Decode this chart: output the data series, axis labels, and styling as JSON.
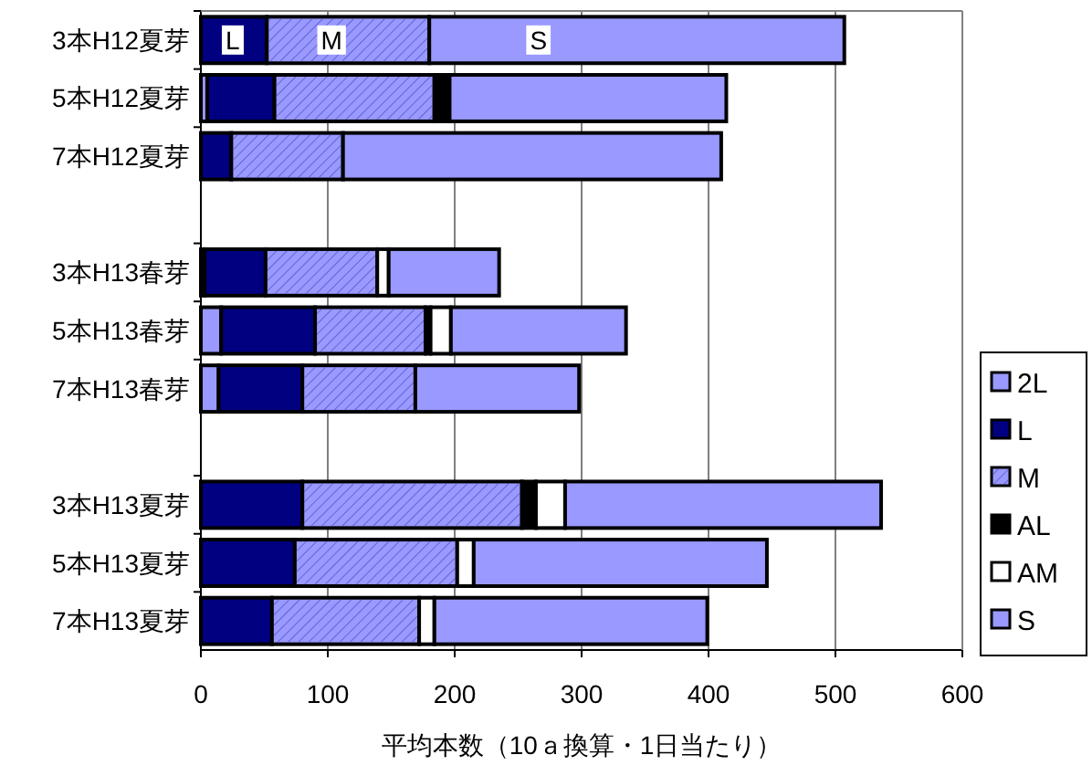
{
  "chart_data": {
    "type": "bar",
    "orientation": "horizontal",
    "stacked": true,
    "categories": [
      "3本H12夏芽",
      "5本H12夏芽",
      "7本H12夏芽",
      null,
      "3本H13春芽",
      "5本H13春芽",
      "7本H13春芽",
      null,
      "3本H13夏芽",
      "5本H13夏芽",
      "7本H13夏芽"
    ],
    "series": [
      {
        "name": "2L",
        "color": "#9999ff",
        "values": [
          0,
          5,
          0,
          null,
          3,
          16,
          14,
          null,
          0,
          0,
          0
        ]
      },
      {
        "name": "L",
        "color": "#000080",
        "values": [
          52,
          53,
          24,
          null,
          48,
          74,
          66,
          null,
          80,
          74,
          56
        ]
      },
      {
        "name": "M",
        "color": "#9999ff",
        "values": [
          128,
          126,
          88,
          null,
          88,
          87,
          89,
          null,
          173,
          128,
          116
        ]
      },
      {
        "name": "AL",
        "color": "#000000",
        "values": [
          0,
          12,
          0,
          null,
          0,
          4,
          0,
          null,
          11,
          0,
          0
        ]
      },
      {
        "name": "AM",
        "color": "#ffffff",
        "values": [
          0,
          0,
          0,
          null,
          9,
          16,
          0,
          null,
          23,
          13,
          12
        ]
      },
      {
        "name": "S",
        "color": "#9999ff",
        "values": [
          327,
          218,
          298,
          null,
          87,
          138,
          129,
          null,
          249,
          231,
          215
        ]
      }
    ],
    "xlabel": "平均本数（10ａ換算・1日当たり）",
    "xlim": [
      0,
      600
    ],
    "xticks": [
      0,
      100,
      200,
      300,
      400,
      500,
      600
    ],
    "grid": "x",
    "legend": "right",
    "annotations": [
      {
        "text": "L",
        "x": 25,
        "y": "3本H12夏芽"
      },
      {
        "text": "M",
        "x": 103,
        "y": "3本H12夏芽"
      },
      {
        "text": "S",
        "x": 266,
        "y": "3本H12夏芽"
      }
    ]
  }
}
